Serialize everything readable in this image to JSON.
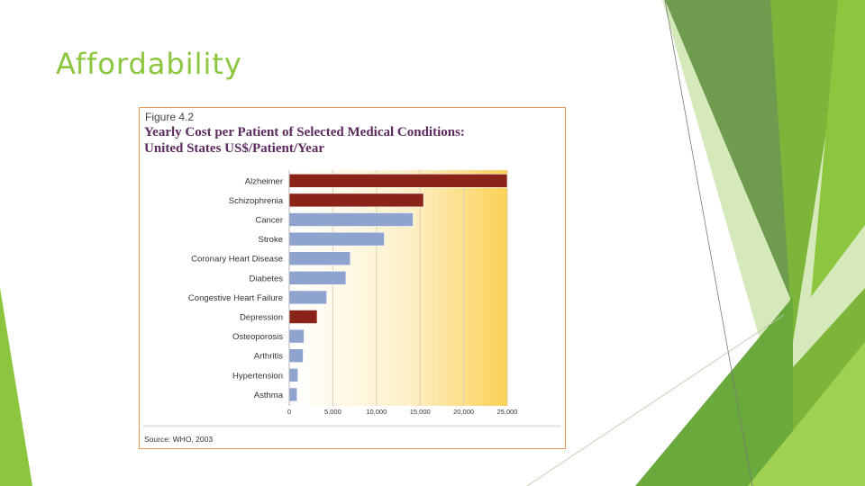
{
  "slide": {
    "title": "Affordability",
    "accent_color": "#8cc63e"
  },
  "figure": {
    "label": "Figure 4.2",
    "title_line1": "Yearly Cost per Patient of Selected Medical Conditions:",
    "title_line2": "United States US$/Patient/Year",
    "source": "Source: WHO, 2003"
  },
  "chart_data": {
    "type": "bar",
    "orientation": "horizontal",
    "title": "Yearly Cost per Patient of Selected Medical Conditions: United States US$/Patient/Year",
    "xlabel": "",
    "ylabel": "",
    "xlim": [
      0,
      25000
    ],
    "grid": true,
    "categories": [
      "Alzheimer",
      "Schizophrenia",
      "Cancer",
      "Stroke",
      "Coronary Heart Disease",
      "Diabetes",
      "Congestive Heart Failure",
      "Depression",
      "Osteoporosis",
      "Arthritis",
      "Hypertension",
      "Asthma"
    ],
    "values": [
      25000,
      15400,
      14200,
      10900,
      7000,
      6500,
      4300,
      3200,
      1700,
      1600,
      1000,
      900
    ],
    "bar_colors": [
      "#8b2418",
      "#8b2418",
      "#8fa3cf",
      "#8fa3cf",
      "#8fa3cf",
      "#8fa3cf",
      "#8fa3cf",
      "#8b2418",
      "#8fa3cf",
      "#8fa3cf",
      "#8fa3cf",
      "#8fa3cf"
    ],
    "tick_labels": [
      "0",
      "5,000",
      "10,000",
      "15,000",
      "20,000",
      "25,000"
    ],
    "tick_values": [
      0,
      5000,
      10000,
      15000,
      20000,
      25000
    ]
  }
}
